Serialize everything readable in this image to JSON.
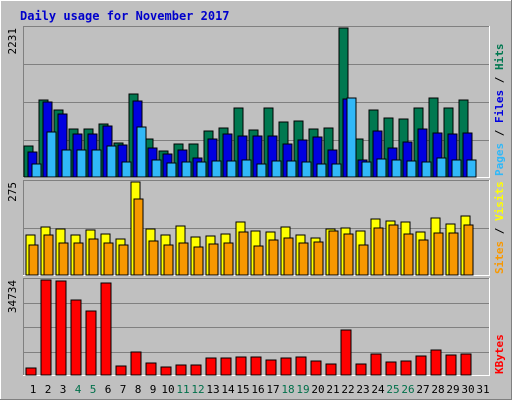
{
  "title": "Daily usage for November 2017",
  "colors": {
    "background": "#c0c0c0",
    "title": "#0000cc",
    "hits": "#007850",
    "files": "#0000e0",
    "pages": "#30b8f8",
    "visits": "#ffff00",
    "sites": "#f89800",
    "kbytes": "#ff0000",
    "weekend_day": "#00704a",
    "weekday": "#000000"
  },
  "chart_data": [
    {
      "type": "bar",
      "panel": "top",
      "y_max_label": "2231",
      "ylim": [
        0,
        2231
      ],
      "legend": [
        "Pages",
        "Files",
        "Hits"
      ],
      "categories": [
        "1",
        "2",
        "3",
        "4",
        "5",
        "6",
        "7",
        "8",
        "9",
        "10",
        "11",
        "12",
        "13",
        "14",
        "15",
        "16",
        "17",
        "18",
        "19",
        "20",
        "21",
        "22",
        "23",
        "24",
        "25",
        "26",
        "27",
        "28",
        "29",
        "30"
      ],
      "series": [
        {
          "name": "Hits",
          "values": [
            470,
            1160,
            1010,
            720,
            720,
            800,
            510,
            1250,
            570,
            390,
            500,
            490,
            690,
            730,
            1030,
            710,
            1030,
            820,
            840,
            720,
            740,
            2231,
            570,
            1010,
            880,
            870,
            1030,
            1180,
            1040,
            1160
          ]
        },
        {
          "name": "Files",
          "values": [
            370,
            1120,
            950,
            650,
            650,
            760,
            480,
            1140,
            430,
            350,
            400,
            290,
            570,
            650,
            610,
            620,
            610,
            500,
            560,
            600,
            400,
            1170,
            260,
            690,
            440,
            530,
            720,
            660,
            640,
            660
          ]
        },
        {
          "name": "Pages",
          "values": [
            200,
            680,
            410,
            410,
            410,
            460,
            220,
            750,
            250,
            210,
            220,
            220,
            240,
            240,
            250,
            200,
            240,
            240,
            220,
            200,
            200,
            1190,
            230,
            270,
            250,
            240,
            230,
            280,
            250,
            250
          ]
        }
      ]
    },
    {
      "type": "bar",
      "panel": "middle",
      "y_max_label": "275",
      "ylim": [
        0,
        275
      ],
      "legend": [
        "Sites",
        "Visits"
      ],
      "categories": [
        "1",
        "2",
        "3",
        "4",
        "5",
        "6",
        "7",
        "8",
        "9",
        "10",
        "11",
        "12",
        "13",
        "14",
        "15",
        "16",
        "17",
        "18",
        "19",
        "20",
        "21",
        "22",
        "23",
        "24",
        "25",
        "26",
        "27",
        "28",
        "29",
        "30"
      ],
      "series": [
        {
          "name": "Visits",
          "values": [
            117,
            142,
            135,
            117,
            132,
            122,
            107,
            275,
            137,
            119,
            145,
            112,
            114,
            122,
            157,
            129,
            126,
            142,
            117,
            110,
            137,
            139,
            129,
            167,
            160,
            157,
            127,
            170,
            152,
            175
          ]
        },
        {
          "name": "Sites",
          "values": [
            89,
            117,
            94,
            95,
            105,
            94,
            88,
            224,
            101,
            89,
            95,
            83,
            92,
            95,
            127,
            85,
            103,
            109,
            95,
            97,
            129,
            122,
            88,
            139,
            148,
            122,
            104,
            125,
            123,
            149
          ]
        }
      ]
    },
    {
      "type": "bar",
      "panel": "bottom",
      "y_max_label": "34734",
      "ylim": [
        0,
        34734
      ],
      "legend": [
        "KBytes"
      ],
      "categories": [
        "1",
        "2",
        "3",
        "4",
        "5",
        "6",
        "7",
        "8",
        "9",
        "10",
        "11",
        "12",
        "13",
        "14",
        "15",
        "16",
        "17",
        "18",
        "19",
        "20",
        "21",
        "22",
        "23",
        "24",
        "25",
        "26",
        "27",
        "28",
        "29",
        "30"
      ],
      "series": [
        {
          "name": "KBytes",
          "values": [
            2500,
            34734,
            34500,
            27500,
            23500,
            33500,
            3200,
            8500,
            4300,
            3100,
            3700,
            3700,
            6300,
            6300,
            6700,
            6700,
            5500,
            6200,
            6600,
            5200,
            3900,
            16300,
            3900,
            7700,
            4900,
            5200,
            7100,
            9200,
            7300,
            7700
          ]
        }
      ]
    }
  ],
  "x_axis": {
    "days": [
      {
        "label": "1",
        "weekend": false
      },
      {
        "label": "2",
        "weekend": false
      },
      {
        "label": "3",
        "weekend": false
      },
      {
        "label": "4",
        "weekend": true
      },
      {
        "label": "5",
        "weekend": true
      },
      {
        "label": "6",
        "weekend": false
      },
      {
        "label": "7",
        "weekend": false
      },
      {
        "label": "8",
        "weekend": false
      },
      {
        "label": "9",
        "weekend": false
      },
      {
        "label": "10",
        "weekend": false
      },
      {
        "label": "11",
        "weekend": true
      },
      {
        "label": "12",
        "weekend": true
      },
      {
        "label": "13",
        "weekend": false
      },
      {
        "label": "14",
        "weekend": false
      },
      {
        "label": "15",
        "weekend": false
      },
      {
        "label": "16",
        "weekend": false
      },
      {
        "label": "17",
        "weekend": false
      },
      {
        "label": "18",
        "weekend": true
      },
      {
        "label": "19",
        "weekend": true
      },
      {
        "label": "20",
        "weekend": false
      },
      {
        "label": "21",
        "weekend": false
      },
      {
        "label": "22",
        "weekend": false
      },
      {
        "label": "23",
        "weekend": false
      },
      {
        "label": "24",
        "weekend": false
      },
      {
        "label": "25",
        "weekend": true
      },
      {
        "label": "26",
        "weekend": true
      },
      {
        "label": "27",
        "weekend": false
      },
      {
        "label": "28",
        "weekend": false
      },
      {
        "label": "29",
        "weekend": false
      },
      {
        "label": "30",
        "weekend": false
      },
      {
        "label": "31",
        "weekend": false
      }
    ]
  },
  "legend_separator": " / "
}
